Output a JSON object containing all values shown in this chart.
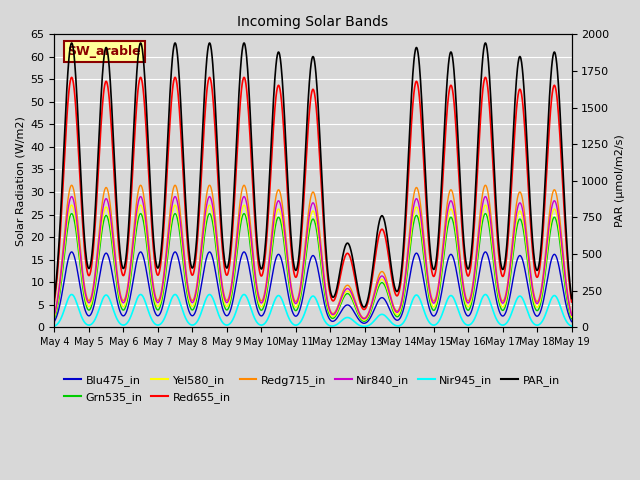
{
  "title": "Incoming Solar Bands",
  "ylabel_left": "Solar Radiation (W/m2)",
  "ylabel_right": "PAR (μmol/m2/s)",
  "annotation_text": "SW_arable",
  "annotation_color": "#8B0000",
  "annotation_bg": "#FFFF99",
  "n_days": 15,
  "ylim_left": [
    0,
    65
  ],
  "ylim_right": [
    0,
    2000
  ],
  "bg_color": "#d8d8d8",
  "series": [
    {
      "name": "Blu475_in",
      "color": "#0000cc",
      "lw": 1.0,
      "scale": 0.265,
      "sigma": 0.22
    },
    {
      "name": "Grn535_in",
      "color": "#00cc00",
      "lw": 1.0,
      "scale": 0.4,
      "sigma": 0.22
    },
    {
      "name": "Yel580_in",
      "color": "#ffff00",
      "lw": 1.0,
      "scale": 0.43,
      "sigma": 0.225
    },
    {
      "name": "Red655_in",
      "color": "#ff0000",
      "lw": 1.2,
      "scale": 0.88,
      "sigma": 0.235
    },
    {
      "name": "Redg715_in",
      "color": "#ff8800",
      "lw": 1.0,
      "scale": 0.5,
      "sigma": 0.23
    },
    {
      "name": "Nir840_in",
      "color": "#cc00cc",
      "lw": 1.0,
      "scale": 0.46,
      "sigma": 0.23
    },
    {
      "name": "Nir945_in",
      "color": "#00ffff",
      "lw": 1.2,
      "scale": 0.115,
      "sigma": 0.19
    },
    {
      "name": "PAR_in",
      "color": "#000000",
      "lw": 1.2,
      "scale": 30.8,
      "sigma": 0.235
    }
  ],
  "day_peaks": [
    63,
    62,
    63,
    63,
    63,
    63,
    61,
    60,
    49,
    65,
    62,
    61,
    63,
    60,
    61
  ],
  "cloudy_days_idx": [
    8,
    9
  ],
  "cloudy_factor": 0.38,
  "x_tick_labels": [
    "May 4",
    "May 5",
    "May 6",
    "May 7",
    "May 8",
    "May 9",
    "May 10",
    "May 11",
    "May 12",
    "May 13",
    "May 14",
    "May 15",
    "May 16",
    "May 17",
    "May 18",
    "May 19"
  ],
  "legend_row1": [
    {
      "name": "Blu475_in",
      "color": "#0000cc"
    },
    {
      "name": "Grn535_in",
      "color": "#00cc00"
    },
    {
      "name": "Yel580_in",
      "color": "#ffff00"
    },
    {
      "name": "Red655_in",
      "color": "#ff0000"
    },
    {
      "name": "Redg715_in",
      "color": "#ff8800"
    },
    {
      "name": "Nir840_in",
      "color": "#cc00cc"
    }
  ],
  "legend_row2": [
    {
      "name": "Nir945_in",
      "color": "#00ffff"
    },
    {
      "name": "PAR_in",
      "color": "#000000"
    }
  ]
}
